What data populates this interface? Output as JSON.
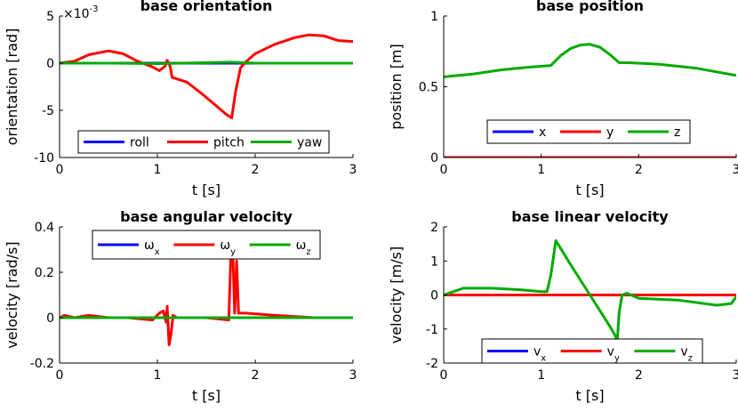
{
  "colors": {
    "x": "#0000ff",
    "y": "#ff0000",
    "z": "#00aa00",
    "axis": "#000000"
  },
  "chart_data": [
    {
      "type": "line",
      "title": "base orientation",
      "xlabel": "t [s]",
      "ylabel": "orientation [rad]",
      "exponent_label": "×10",
      "exponent": "-3",
      "xlim": [
        0,
        3
      ],
      "ylim": [
        -10,
        5
      ],
      "xticks": [
        "0",
        "1",
        "2",
        "3"
      ],
      "yticks": [
        "-10",
        "-5",
        "0",
        "5"
      ],
      "legend": {
        "position": "bottom",
        "entries": [
          "roll",
          "pitch",
          "yaw"
        ]
      },
      "series": [
        {
          "name": "roll",
          "x": [
            0,
            0.5,
            1,
            1.5,
            2,
            2.5,
            3
          ],
          "values": [
            0,
            0,
            0,
            0,
            0,
            0,
            0
          ]
        },
        {
          "name": "pitch",
          "x": [
            0,
            0.15,
            0.3,
            0.5,
            0.65,
            0.8,
            0.95,
            1.02,
            1.08,
            1.1,
            1.13,
            1.15,
            1.3,
            1.45,
            1.6,
            1.7,
            1.76,
            1.8,
            1.85,
            1.9,
            2.0,
            2.2,
            2.4,
            2.55,
            2.7,
            2.85,
            3.0
          ],
          "values": [
            0,
            0.2,
            0.9,
            1.3,
            1.0,
            0.2,
            -0.4,
            -0.8,
            -0.3,
            0.3,
            -0.3,
            -1.5,
            -2.0,
            -3.2,
            -4.5,
            -5.4,
            -5.8,
            -3.0,
            -0.5,
            0.1,
            1.0,
            2.0,
            2.7,
            3.0,
            2.9,
            2.4,
            2.3
          ]
        },
        {
          "name": "yaw",
          "x": [
            0,
            0.5,
            1,
            1.5,
            1.75,
            2,
            2.5,
            3
          ],
          "values": [
            0,
            0,
            -0.05,
            0.05,
            0.1,
            0,
            0,
            0
          ]
        }
      ]
    },
    {
      "type": "line",
      "title": "base position",
      "xlabel": "t [s]",
      "ylabel": "position [m]",
      "xlim": [
        0,
        3
      ],
      "ylim": [
        0,
        1
      ],
      "xticks": [
        "0",
        "1",
        "2",
        "3"
      ],
      "yticks": [
        "0",
        "0.5",
        "1"
      ],
      "legend": {
        "position": "bottom",
        "entries": [
          "x",
          "y",
          "z"
        ]
      },
      "series": [
        {
          "name": "x",
          "x": [
            0,
            3
          ],
          "values": [
            0,
            0
          ]
        },
        {
          "name": "y",
          "x": [
            0,
            3
          ],
          "values": [
            0,
            0
          ]
        },
        {
          "name": "z",
          "x": [
            0,
            0.3,
            0.6,
            0.9,
            1.1,
            1.2,
            1.3,
            1.4,
            1.5,
            1.6,
            1.7,
            1.8,
            1.9,
            2.2,
            2.6,
            3.0
          ],
          "values": [
            0.57,
            0.59,
            0.62,
            0.64,
            0.65,
            0.72,
            0.77,
            0.795,
            0.8,
            0.78,
            0.73,
            0.67,
            0.67,
            0.66,
            0.63,
            0.58
          ]
        }
      ]
    },
    {
      "type": "line",
      "title": "base angular velocity",
      "xlabel": "t [s]",
      "ylabel": "velocity [rad/s]",
      "xlim": [
        0,
        3
      ],
      "ylim": [
        -0.2,
        0.4
      ],
      "xticks": [
        "0",
        "1",
        "2",
        "3"
      ],
      "yticks": [
        "-0.2",
        "0",
        "0.2",
        "0.4"
      ],
      "legend": {
        "position": "top",
        "symbol": "ω",
        "entries": [
          "x",
          "y",
          "z"
        ]
      },
      "series": [
        {
          "name": "ωx",
          "x": [
            0,
            3
          ],
          "values": [
            0,
            0
          ]
        },
        {
          "name": "ωy",
          "x": [
            0,
            0.05,
            0.15,
            0.3,
            0.5,
            0.7,
            0.95,
            1.02,
            1.06,
            1.09,
            1.1,
            1.12,
            1.14,
            1.16,
            1.2,
            1.5,
            1.73,
            1.75,
            1.77,
            1.79,
            1.81,
            1.83,
            1.9,
            2.2,
            2.6,
            3.0
          ],
          "values": [
            0,
            0.01,
            0,
            0.01,
            0,
            0,
            -0.01,
            0.02,
            0.03,
            -0.02,
            0.05,
            -0.12,
            -0.07,
            0.01,
            0,
            0,
            -0.01,
            0.26,
            0.3,
            0.02,
            0.25,
            0.02,
            0.02,
            0.01,
            0,
            0
          ]
        },
        {
          "name": "ωz",
          "x": [
            0,
            3
          ],
          "values": [
            0,
            0
          ]
        }
      ]
    },
    {
      "type": "line",
      "title": "base linear velocity",
      "xlabel": "t [s]",
      "ylabel": "velocity [m/s]",
      "xlim": [
        0,
        3
      ],
      "ylim": [
        -2,
        2
      ],
      "xticks": [
        "0",
        "1",
        "2",
        "3"
      ],
      "yticks": [
        "-2",
        "-1",
        "0",
        "1",
        "2"
      ],
      "legend": {
        "position": "bottom",
        "symbol": "v",
        "entries": [
          "x",
          "y",
          "z"
        ]
      },
      "series": [
        {
          "name": "vx",
          "x": [
            0,
            3
          ],
          "values": [
            0,
            0
          ]
        },
        {
          "name": "vy",
          "x": [
            0,
            3
          ],
          "values": [
            0,
            0
          ]
        },
        {
          "name": "vz",
          "x": [
            0,
            0.1,
            0.2,
            0.5,
            0.8,
            1.0,
            1.06,
            1.1,
            1.15,
            1.3,
            1.5,
            1.7,
            1.76,
            1.78,
            1.8,
            1.83,
            1.88,
            2.0,
            2.4,
            2.8,
            2.95,
            3.0
          ],
          "values": [
            0,
            0.1,
            0.2,
            0.2,
            0.15,
            0.1,
            0.1,
            0.6,
            1.6,
            0.9,
            0,
            -0.9,
            -1.2,
            -1.35,
            -0.5,
            0.0,
            0.05,
            -0.1,
            -0.15,
            -0.3,
            -0.25,
            -0.05
          ]
        }
      ]
    }
  ]
}
